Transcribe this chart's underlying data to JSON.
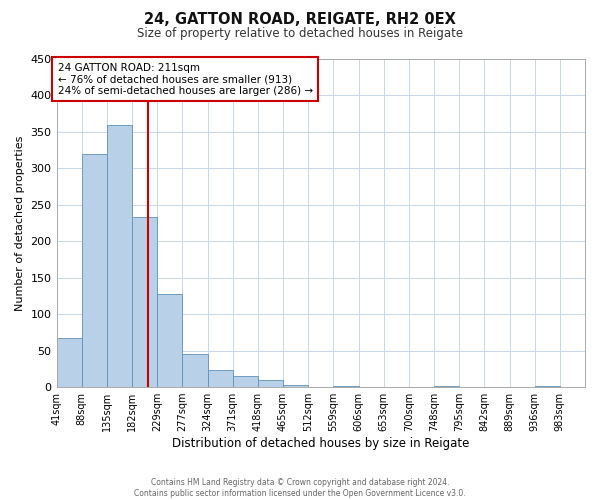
{
  "title1": "24, GATTON ROAD, REIGATE, RH2 0EX",
  "title2": "Size of property relative to detached houses in Reigate",
  "xlabel": "Distribution of detached houses by size in Reigate",
  "ylabel": "Number of detached properties",
  "bin_edges": [
    41,
    88,
    135,
    182,
    229,
    276,
    323,
    370,
    417,
    464,
    511,
    558,
    605,
    652,
    699,
    746,
    793,
    840,
    887,
    934,
    981,
    1028
  ],
  "bin_labels": [
    "41sqm",
    "88sqm",
    "135sqm",
    "182sqm",
    "229sqm",
    "277sqm",
    "324sqm",
    "371sqm",
    "418sqm",
    "465sqm",
    "512sqm",
    "559sqm",
    "606sqm",
    "653sqm",
    "700sqm",
    "748sqm",
    "795sqm",
    "842sqm",
    "889sqm",
    "936sqm",
    "983sqm"
  ],
  "bar_heights": [
    67,
    320,
    360,
    233,
    127,
    46,
    24,
    15,
    10,
    3,
    0,
    1,
    0,
    0,
    0,
    1,
    0,
    0,
    0,
    1,
    0
  ],
  "bar_color": "#b8d0e8",
  "bar_edge_color": "#6090b8",
  "property_line_x": 211,
  "property_line_color": "#cc0000",
  "annotation_text": "24 GATTON ROAD: 211sqm\n← 76% of detached houses are smaller (913)\n24% of semi-detached houses are larger (286) →",
  "annotation_box_color": "#ffffff",
  "annotation_box_edge": "#cc0000",
  "ylim": [
    0,
    450
  ],
  "yticks": [
    0,
    50,
    100,
    150,
    200,
    250,
    300,
    350,
    400,
    450
  ],
  "footer1": "Contains HM Land Registry data © Crown copyright and database right 2024.",
  "footer2": "Contains public sector information licensed under the Open Government Licence v3.0.",
  "background_color": "#ffffff",
  "grid_color": "#c8d8e8"
}
